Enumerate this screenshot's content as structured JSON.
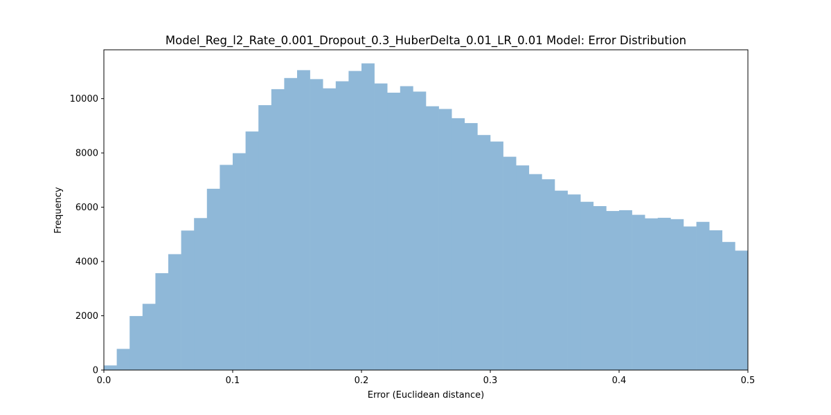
{
  "chart_data": {
    "type": "bar",
    "title": "Model_Reg_l2_Rate_0.001_Dropout_0.3_HuberDelta_0.01_LR_0.01 Model: Error Distribution",
    "xlabel": "Error (Euclidean distance)",
    "ylabel": "Frequency",
    "xlim": [
      0.0,
      0.5
    ],
    "ylim": [
      0,
      11800
    ],
    "xticks": [
      "0.0",
      "0.1",
      "0.2",
      "0.3",
      "0.4",
      "0.5"
    ],
    "yticks": [
      "0",
      "2000",
      "4000",
      "6000",
      "8000",
      "10000"
    ],
    "bin_width": 0.01,
    "bin_starts": [
      0.0,
      0.01,
      0.02,
      0.03,
      0.04,
      0.05,
      0.06,
      0.07,
      0.08,
      0.09,
      0.1,
      0.11,
      0.12,
      0.13,
      0.14,
      0.15,
      0.16,
      0.17,
      0.18,
      0.19,
      0.2,
      0.21,
      0.22,
      0.23,
      0.24,
      0.25,
      0.26,
      0.27,
      0.28,
      0.29,
      0.3,
      0.31,
      0.32,
      0.33,
      0.34,
      0.35,
      0.36,
      0.37,
      0.38,
      0.39,
      0.4,
      0.41,
      0.42,
      0.43,
      0.44,
      0.45,
      0.46,
      0.47,
      0.48,
      0.49
    ],
    "values": [
      170,
      780,
      1990,
      2440,
      3570,
      4270,
      5140,
      5600,
      6680,
      7560,
      7990,
      8790,
      9760,
      10350,
      10760,
      11050,
      10720,
      10380,
      10640,
      11020,
      11300,
      10560,
      10220,
      10460,
      10260,
      9720,
      9620,
      9280,
      9100,
      8660,
      8420,
      7860,
      7540,
      7220,
      7030,
      6610,
      6470,
      6200,
      6040,
      5860,
      5890,
      5720,
      5590,
      5610,
      5560,
      5290,
      5460,
      5150,
      4720,
      4400
    ],
    "bar_color": "#8fb8d8",
    "grid": false,
    "legend": "none"
  }
}
